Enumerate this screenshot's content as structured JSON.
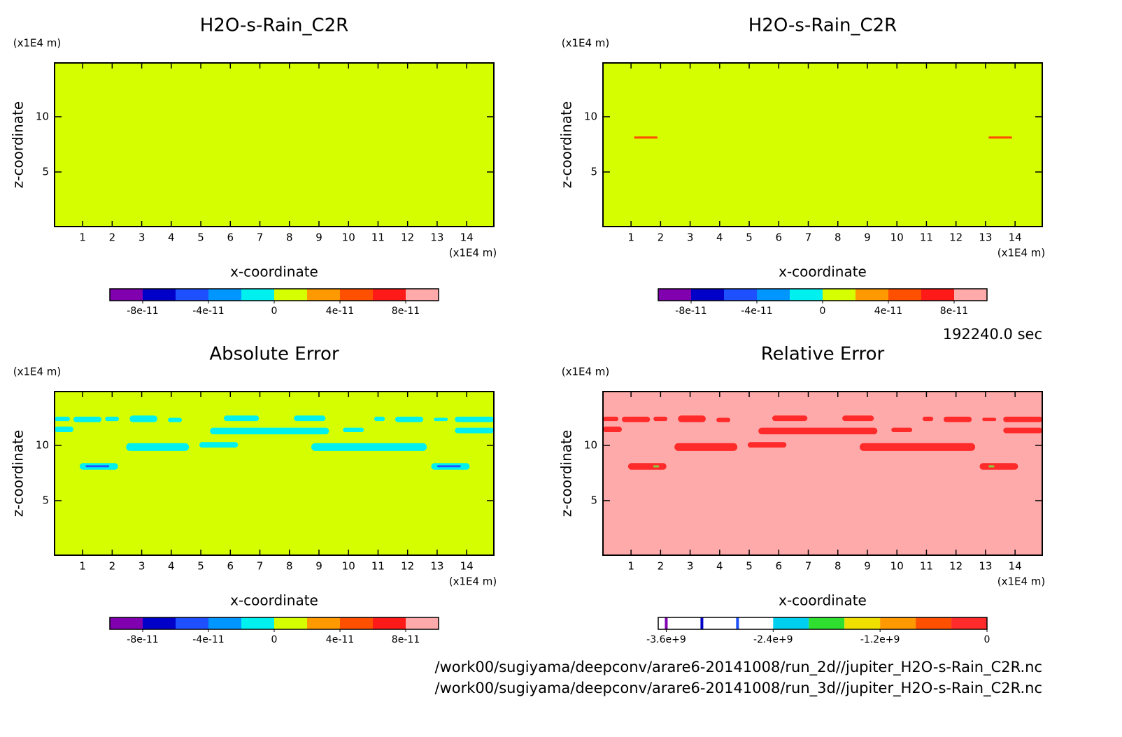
{
  "chart_data": [
    {
      "type": "contour",
      "title": "H2O-s-Rain_C2R",
      "x_label": "x-coordinate",
      "y_label": "z-coordinate",
      "x_unit": "(x1E4 m)",
      "y_unit": "(x1E4 m)",
      "xlim": [
        0.05,
        14.92
      ],
      "ylim": [
        0.06,
        14.87
      ],
      "xticks": [
        1,
        2,
        3,
        4,
        5,
        6,
        7,
        8,
        9,
        10,
        11,
        12,
        13,
        14
      ],
      "yticks": [
        5,
        10
      ],
      "background_color": "#d5ff00",
      "regions": [],
      "colorbar": {
        "lim": [
          -1e-10,
          1e-10
        ],
        "levels": [
          -1e-10,
          -8e-11,
          -6e-11,
          -4e-11,
          -2e-11,
          0,
          2e-11,
          4e-11,
          6e-11,
          8e-11,
          1e-10
        ],
        "colors": [
          "#8000b0",
          "#0000c8",
          "#1e50ff",
          "#0096ff",
          "#00f0f0",
          "#d5ff00",
          "#ff9900",
          "#ff5000",
          "#ff1a1a",
          "#ffaaaa"
        ],
        "lines": [],
        "ticks": [
          -8e-11,
          -4e-11,
          0,
          4e-11,
          8e-11
        ]
      }
    },
    {
      "type": "contour",
      "title": "H2O-s-Rain_C2R",
      "x_label": "x-coordinate",
      "y_label": "z-coordinate",
      "x_unit": "(x1E4 m)",
      "y_unit": "(x1E4 m)",
      "xlim": [
        0.05,
        14.92
      ],
      "ylim": [
        0.06,
        14.87
      ],
      "xticks": [
        1,
        2,
        3,
        4,
        5,
        6,
        7,
        8,
        9,
        10,
        11,
        12,
        13,
        14
      ],
      "yticks": [
        5,
        10
      ],
      "background_color": "#d5ff00",
      "regions": [
        {
          "x": [
            1.1,
            1.9
          ],
          "z": [
            8.02,
            8.22
          ],
          "color": "#ff5000"
        },
        {
          "x": [
            13.1,
            13.9
          ],
          "z": [
            8.02,
            8.22
          ],
          "color": "#ff5000"
        }
      ],
      "colorbar": {
        "lim": [
          -1e-10,
          1e-10
        ],
        "levels": [
          -1e-10,
          -8e-11,
          -6e-11,
          -4e-11,
          -2e-11,
          0,
          2e-11,
          4e-11,
          6e-11,
          8e-11,
          1e-10
        ],
        "colors": [
          "#8000b0",
          "#0000c8",
          "#1e50ff",
          "#0096ff",
          "#00f0f0",
          "#d5ff00",
          "#ff9900",
          "#ff5000",
          "#ff1a1a",
          "#ffaaaa"
        ],
        "lines": [],
        "ticks": [
          -8e-11,
          -4e-11,
          0,
          4e-11,
          8e-11
        ]
      }
    },
    {
      "type": "contour",
      "title": "Absolute Error",
      "x_label": "x-coordinate",
      "y_label": "z-coordinate",
      "x_unit": "(x1E4 m)",
      "y_unit": "(x1E4 m)",
      "xlim": [
        0.05,
        14.92
      ],
      "ylim": [
        0.06,
        14.87
      ],
      "xticks": [
        1,
        2,
        3,
        4,
        5,
        6,
        7,
        8,
        9,
        10,
        11,
        12,
        13,
        14
      ],
      "yticks": [
        5,
        10
      ],
      "background_color": "#d5ff00",
      "regions": [
        {
          "x": [
            0.05,
            0.57
          ],
          "z": [
            12.2,
            12.6
          ],
          "color": "#00f0f0"
        },
        {
          "x": [
            0.69,
            1.64
          ],
          "z": [
            12.1,
            12.6
          ],
          "color": "#00f0f0"
        },
        {
          "x": [
            1.76,
            2.23
          ],
          "z": [
            12.2,
            12.6
          ],
          "color": "#00f0f0"
        },
        {
          "x": [
            2.59,
            3.53
          ],
          "z": [
            12.1,
            12.7
          ],
          "color": "#00f0f0"
        },
        {
          "x": [
            3.89,
            4.36
          ],
          "z": [
            12.1,
            12.5
          ],
          "color": "#00f0f0"
        },
        {
          "x": [
            5.78,
            6.97
          ],
          "z": [
            12.2,
            12.7
          ],
          "color": "#00f0f0"
        },
        {
          "x": [
            8.15,
            9.22
          ],
          "z": [
            12.2,
            12.7
          ],
          "color": "#00f0f0"
        },
        {
          "x": [
            10.87,
            11.23
          ],
          "z": [
            12.2,
            12.6
          ],
          "color": "#00f0f0"
        },
        {
          "x": [
            11.58,
            12.53
          ],
          "z": [
            12.1,
            12.6
          ],
          "color": "#00f0f0"
        },
        {
          "x": [
            12.89,
            13.36
          ],
          "z": [
            12.2,
            12.5
          ],
          "color": "#00f0f0"
        },
        {
          "x": [
            13.6,
            14.92
          ],
          "z": [
            12.1,
            12.6
          ],
          "color": "#00f0f0"
        },
        {
          "x": [
            0.05,
            0.69
          ],
          "z": [
            11.2,
            11.7
          ],
          "color": "#00f0f0"
        },
        {
          "x": [
            5.31,
            9.34
          ],
          "z": [
            11.0,
            11.6
          ],
          "color": "#00f0f0"
        },
        {
          "x": [
            9.81,
            10.52
          ],
          "z": [
            11.2,
            11.6
          ],
          "color": "#00f0f0"
        },
        {
          "x": [
            13.6,
            14.92
          ],
          "z": [
            11.1,
            11.6
          ],
          "color": "#00f0f0"
        },
        {
          "x": [
            2.47,
            4.6
          ],
          "z": [
            9.5,
            10.2
          ],
          "color": "#00f0f0"
        },
        {
          "x": [
            4.95,
            6.26
          ],
          "z": [
            9.8,
            10.3
          ],
          "color": "#00f0f0"
        },
        {
          "x": [
            8.74,
            12.65
          ],
          "z": [
            9.5,
            10.2
          ],
          "color": "#00f0f0"
        },
        {
          "x": [
            0.9,
            2.2
          ],
          "z": [
            7.8,
            8.4
          ],
          "color": "#00f0f0"
        },
        {
          "x": [
            1.1,
            1.9
          ],
          "z": [
            8.02,
            8.2
          ],
          "color": "#1e50ff"
        },
        {
          "x": [
            12.8,
            14.1
          ],
          "z": [
            7.8,
            8.4
          ],
          "color": "#00f0f0"
        },
        {
          "x": [
            13.0,
            13.8
          ],
          "z": [
            8.02,
            8.2
          ],
          "color": "#1e50ff"
        }
      ],
      "colorbar": {
        "lim": [
          -1e-10,
          1e-10
        ],
        "levels": [
          -1e-10,
          -8e-11,
          -6e-11,
          -4e-11,
          -2e-11,
          0,
          2e-11,
          4e-11,
          6e-11,
          8e-11,
          1e-10
        ],
        "colors": [
          "#8000b0",
          "#0000c8",
          "#1e50ff",
          "#0096ff",
          "#00f0f0",
          "#d5ff00",
          "#ff9900",
          "#ff5000",
          "#ff1a1a",
          "#ffaaaa"
        ],
        "lines": [],
        "ticks": [
          -8e-11,
          -4e-11,
          0,
          4e-11,
          8e-11
        ]
      }
    },
    {
      "type": "contour",
      "title": "Relative Error",
      "x_label": "x-coordinate",
      "y_label": "z-coordinate",
      "x_unit": "(x1E4 m)",
      "y_unit": "(x1E4 m)",
      "xlim": [
        0.05,
        14.92
      ],
      "ylim": [
        0.06,
        14.87
      ],
      "xticks": [
        1,
        2,
        3,
        4,
        5,
        6,
        7,
        8,
        9,
        10,
        11,
        12,
        13,
        14
      ],
      "yticks": [
        5,
        10
      ],
      "background_color": "#ffaaaa",
      "regions": [
        {
          "x": [
            0.05,
            0.57
          ],
          "z": [
            12.2,
            12.6
          ],
          "color": "#ff2a2a"
        },
        {
          "x": [
            0.69,
            1.64
          ],
          "z": [
            12.1,
            12.6
          ],
          "color": "#ff2a2a"
        },
        {
          "x": [
            1.76,
            2.23
          ],
          "z": [
            12.2,
            12.6
          ],
          "color": "#ff2a2a"
        },
        {
          "x": [
            2.59,
            3.53
          ],
          "z": [
            12.1,
            12.7
          ],
          "color": "#ff2a2a"
        },
        {
          "x": [
            3.89,
            4.36
          ],
          "z": [
            12.1,
            12.5
          ],
          "color": "#ff2a2a"
        },
        {
          "x": [
            5.78,
            6.97
          ],
          "z": [
            12.2,
            12.7
          ],
          "color": "#ff2a2a"
        },
        {
          "x": [
            8.15,
            9.22
          ],
          "z": [
            12.2,
            12.7
          ],
          "color": "#ff2a2a"
        },
        {
          "x": [
            10.87,
            11.23
          ],
          "z": [
            12.2,
            12.6
          ],
          "color": "#ff2a2a"
        },
        {
          "x": [
            11.58,
            12.53
          ],
          "z": [
            12.1,
            12.6
          ],
          "color": "#ff2a2a"
        },
        {
          "x": [
            12.89,
            13.36
          ],
          "z": [
            12.2,
            12.5
          ],
          "color": "#ff2a2a"
        },
        {
          "x": [
            13.6,
            14.92
          ],
          "z": [
            12.1,
            12.6
          ],
          "color": "#ff2a2a"
        },
        {
          "x": [
            0.05,
            0.69
          ],
          "z": [
            11.2,
            11.7
          ],
          "color": "#ff2a2a"
        },
        {
          "x": [
            5.31,
            9.34
          ],
          "z": [
            11.0,
            11.6
          ],
          "color": "#ff2a2a"
        },
        {
          "x": [
            9.81,
            10.52
          ],
          "z": [
            11.2,
            11.6
          ],
          "color": "#ff2a2a"
        },
        {
          "x": [
            13.6,
            14.92
          ],
          "z": [
            11.1,
            11.6
          ],
          "color": "#ff2a2a"
        },
        {
          "x": [
            2.47,
            4.6
          ],
          "z": [
            9.5,
            10.2
          ],
          "color": "#ff2a2a"
        },
        {
          "x": [
            4.95,
            6.26
          ],
          "z": [
            9.8,
            10.3
          ],
          "color": "#ff2a2a"
        },
        {
          "x": [
            8.74,
            12.65
          ],
          "z": [
            9.5,
            10.2
          ],
          "color": "#ff2a2a"
        },
        {
          "x": [
            0.9,
            2.2
          ],
          "z": [
            7.8,
            8.4
          ],
          "color": "#ff2a2a"
        },
        {
          "x": [
            1.75,
            1.95
          ],
          "z": [
            8.0,
            8.2
          ],
          "color": "#88cc44"
        },
        {
          "x": [
            12.8,
            14.1
          ],
          "z": [
            7.8,
            8.4
          ],
          "color": "#ff2a2a"
        },
        {
          "x": [
            13.1,
            13.3
          ],
          "z": [
            8.0,
            8.2
          ],
          "color": "#88cc44"
        }
      ],
      "colorbar": {
        "lim": [
          -3690000000.0,
          0
        ],
        "levels": [
          -3690000000.0,
          -3200000000.0,
          -2800000000.0,
          -2400000000.0,
          -2000000000.0,
          -1600000000.0,
          -1200000000.0,
          -800000000.0,
          -400000000.0,
          0
        ],
        "colors": [
          "#ffffff",
          "#ffffff",
          "#ffffff",
          "#00d0f0",
          "#30e030",
          "#f0e000",
          "#ff9900",
          "#ff5000",
          "#ff2a2a"
        ],
        "lines": [
          {
            "value": -3600000000.0,
            "color": "#8000b0"
          },
          {
            "value": -3200000000.0,
            "color": "#0000c8"
          },
          {
            "value": -2800000000.0,
            "color": "#1e50ff"
          }
        ],
        "ticks": [
          {
            "value": -3600000000.0,
            "label": "-3.6e+9"
          },
          {
            "value": -2400000000.0,
            "label": "-2.4e+9"
          },
          {
            "value": -1200000000.0,
            "label": "-1.2e+9"
          },
          0
        ]
      }
    }
  ],
  "time_label": "192240.0 sec",
  "file_paths": [
    "/work00/sugiyama/deepconv/arare6-20141008/run_2d//jupiter_H2O-s-Rain_C2R.nc",
    "/work00/sugiyama/deepconv/arare6-20141008/run_3d//jupiter_H2O-s-Rain_C2R.nc"
  ]
}
